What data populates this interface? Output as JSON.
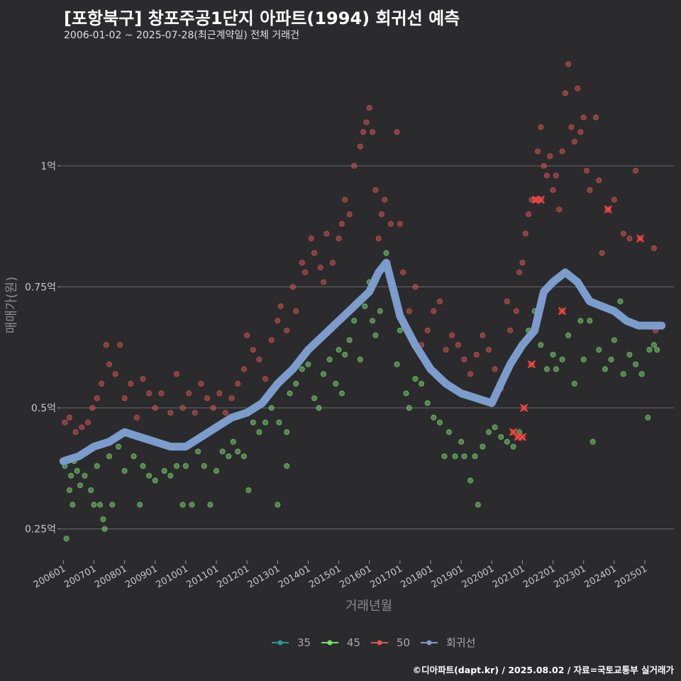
{
  "title": "[포항북구] 창포주공1단지 아파트(1994) 회귀선 예측",
  "subtitle": "2006-01-02 ~ 2025-07-28(최근계약일) 전체 거래건",
  "caption": "©디아파트(dapt.kr) / 2025.08.02 / 자료=국토교통부 실거래가",
  "chart_data": {
    "type": "scatter",
    "xlabel": "거래년월",
    "ylabel": "매매가(원)",
    "x_ticks": [
      "200601",
      "200701",
      "200801",
      "200901",
      "201001",
      "201101",
      "201201",
      "201301",
      "201401",
      "201501",
      "201601",
      "201701",
      "201801",
      "201901",
      "202001",
      "202101",
      "202201",
      "202301",
      "202401",
      "202501"
    ],
    "y_ticks": [
      {
        "value": 0.25,
        "label": "0.25억"
      },
      {
        "value": 0.5,
        "label": "0.5억"
      },
      {
        "value": 0.75,
        "label": "0.75억"
      },
      {
        "value": 1.0,
        "label": "1억"
      }
    ],
    "xlim": [
      2005.9,
      2025.95
    ],
    "ylim": [
      0.185,
      1.24
    ],
    "grid": true,
    "legend_position": "bottom",
    "series": [
      {
        "name": "35",
        "color": "#2a9d8f",
        "points": []
      },
      {
        "name": "45",
        "color": "#7ddb6f",
        "points": [
          [
            2006.05,
            0.38
          ],
          [
            2006.1,
            0.23
          ],
          [
            2006.2,
            0.33
          ],
          [
            2006.25,
            0.36
          ],
          [
            2006.3,
            0.3
          ],
          [
            2006.35,
            0.39
          ],
          [
            2006.45,
            0.37
          ],
          [
            2006.55,
            0.34
          ],
          [
            2006.7,
            0.36
          ],
          [
            2006.9,
            0.33
          ],
          [
            2007.0,
            0.3
          ],
          [
            2007.1,
            0.38
          ],
          [
            2007.2,
            0.3
          ],
          [
            2007.3,
            0.27
          ],
          [
            2007.35,
            0.25
          ],
          [
            2007.5,
            0.4
          ],
          [
            2007.6,
            0.3
          ],
          [
            2007.8,
            0.42
          ],
          [
            2008.0,
            0.37
          ],
          [
            2008.3,
            0.4
          ],
          [
            2008.5,
            0.3
          ],
          [
            2008.6,
            0.38
          ],
          [
            2008.8,
            0.36
          ],
          [
            2009.0,
            0.35
          ],
          [
            2009.3,
            0.37
          ],
          [
            2009.5,
            0.36
          ],
          [
            2009.7,
            0.38
          ],
          [
            2009.9,
            0.3
          ],
          [
            2010.0,
            0.38
          ],
          [
            2010.2,
            0.3
          ],
          [
            2010.4,
            0.41
          ],
          [
            2010.6,
            0.38
          ],
          [
            2010.8,
            0.3
          ],
          [
            2011.0,
            0.37
          ],
          [
            2011.2,
            0.41
          ],
          [
            2011.4,
            0.4
          ],
          [
            2011.55,
            0.43
          ],
          [
            2011.7,
            0.41
          ],
          [
            2011.9,
            0.4
          ],
          [
            2012.05,
            0.33
          ],
          [
            2012.2,
            0.47
          ],
          [
            2012.4,
            0.45
          ],
          [
            2012.6,
            0.47
          ],
          [
            2012.8,
            0.5
          ],
          [
            2013.0,
            0.3
          ],
          [
            2013.05,
            0.47
          ],
          [
            2013.3,
            0.38
          ],
          [
            2013.3,
            0.45
          ],
          [
            2013.4,
            0.53
          ],
          [
            2013.6,
            0.55
          ],
          [
            2013.8,
            0.58
          ],
          [
            2014.0,
            0.59
          ],
          [
            2014.2,
            0.52
          ],
          [
            2014.35,
            0.5
          ],
          [
            2014.5,
            0.57
          ],
          [
            2014.7,
            0.6
          ],
          [
            2014.9,
            0.55
          ],
          [
            2015.0,
            0.62
          ],
          [
            2015.1,
            0.53
          ],
          [
            2015.2,
            0.61
          ],
          [
            2015.35,
            0.64
          ],
          [
            2015.5,
            0.68
          ],
          [
            2015.7,
            0.6
          ],
          [
            2015.85,
            0.71
          ],
          [
            2016.0,
            0.76
          ],
          [
            2016.1,
            0.68
          ],
          [
            2016.2,
            0.65
          ],
          [
            2016.35,
            0.7
          ],
          [
            2016.55,
            0.82
          ],
          [
            2016.9,
            0.59
          ],
          [
            2017.0,
            0.66
          ],
          [
            2017.2,
            0.53
          ],
          [
            2017.3,
            0.5
          ],
          [
            2017.5,
            0.56
          ],
          [
            2017.7,
            0.55
          ],
          [
            2017.9,
            0.51
          ],
          [
            2018.1,
            0.48
          ],
          [
            2018.3,
            0.47
          ],
          [
            2018.45,
            0.4
          ],
          [
            2018.6,
            0.45
          ],
          [
            2018.8,
            0.4
          ],
          [
            2019.0,
            0.43
          ],
          [
            2019.1,
            0.4
          ],
          [
            2019.3,
            0.35
          ],
          [
            2019.45,
            0.4
          ],
          [
            2019.55,
            0.3
          ],
          [
            2019.7,
            0.42
          ],
          [
            2019.9,
            0.45
          ],
          [
            2020.1,
            0.46
          ],
          [
            2020.3,
            0.44
          ],
          [
            2020.5,
            0.43
          ],
          [
            2020.7,
            0.42
          ],
          [
            2020.9,
            0.45
          ],
          [
            2021.2,
            0.66
          ],
          [
            2021.4,
            0.7
          ],
          [
            2021.6,
            0.63
          ],
          [
            2021.8,
            0.58
          ],
          [
            2022.0,
            0.61
          ],
          [
            2022.1,
            0.58
          ],
          [
            2022.3,
            0.6
          ],
          [
            2022.5,
            0.65
          ],
          [
            2022.7,
            0.55
          ],
          [
            2022.9,
            0.68
          ],
          [
            2023.0,
            0.6
          ],
          [
            2023.2,
            0.68
          ],
          [
            2023.3,
            0.43
          ],
          [
            2023.5,
            0.62
          ],
          [
            2023.7,
            0.58
          ],
          [
            2023.9,
            0.6
          ],
          [
            2024.0,
            0.64
          ],
          [
            2024.2,
            0.72
          ],
          [
            2024.3,
            0.57
          ],
          [
            2024.5,
            0.61
          ],
          [
            2024.7,
            0.59
          ],
          [
            2024.9,
            0.57
          ],
          [
            2025.0,
            0.67
          ],
          [
            2025.1,
            0.48
          ],
          [
            2025.15,
            0.62
          ],
          [
            2025.3,
            0.63
          ],
          [
            2025.4,
            0.62
          ]
        ]
      },
      {
        "name": "50",
        "color": "#e05555",
        "points": [
          [
            2006.05,
            0.47
          ],
          [
            2006.2,
            0.48
          ],
          [
            2006.4,
            0.45
          ],
          [
            2006.6,
            0.46
          ],
          [
            2006.8,
            0.47
          ],
          [
            2006.95,
            0.5
          ],
          [
            2007.1,
            0.52
          ],
          [
            2007.25,
            0.55
          ],
          [
            2007.4,
            0.63
          ],
          [
            2007.5,
            0.59
          ],
          [
            2007.7,
            0.57
          ],
          [
            2007.85,
            0.63
          ],
          [
            2008.0,
            0.52
          ],
          [
            2008.2,
            0.55
          ],
          [
            2008.4,
            0.48
          ],
          [
            2008.6,
            0.56
          ],
          [
            2008.8,
            0.53
          ],
          [
            2009.0,
            0.5
          ],
          [
            2009.2,
            0.53
          ],
          [
            2009.5,
            0.49
          ],
          [
            2009.7,
            0.57
          ],
          [
            2009.9,
            0.5
          ],
          [
            2010.1,
            0.53
          ],
          [
            2010.3,
            0.49
          ],
          [
            2010.5,
            0.55
          ],
          [
            2010.7,
            0.52
          ],
          [
            2010.9,
            0.5
          ],
          [
            2011.1,
            0.53
          ],
          [
            2011.3,
            0.49
          ],
          [
            2011.5,
            0.52
          ],
          [
            2011.7,
            0.55
          ],
          [
            2011.9,
            0.58
          ],
          [
            2012.0,
            0.65
          ],
          [
            2012.2,
            0.62
          ],
          [
            2012.4,
            0.6
          ],
          [
            2012.6,
            0.56
          ],
          [
            2012.8,
            0.64
          ],
          [
            2013.0,
            0.68
          ],
          [
            2013.1,
            0.71
          ],
          [
            2013.3,
            0.66
          ],
          [
            2013.5,
            0.75
          ],
          [
            2013.6,
            0.7
          ],
          [
            2013.8,
            0.8
          ],
          [
            2013.9,
            0.78
          ],
          [
            2014.1,
            0.85
          ],
          [
            2014.2,
            0.82
          ],
          [
            2014.4,
            0.79
          ],
          [
            2014.5,
            0.76
          ],
          [
            2014.6,
            0.86
          ],
          [
            2014.8,
            0.8
          ],
          [
            2015.0,
            0.85
          ],
          [
            2015.1,
            0.88
          ],
          [
            2015.2,
            0.93
          ],
          [
            2015.35,
            0.9
          ],
          [
            2015.5,
            1.0
          ],
          [
            2015.7,
            1.04
          ],
          [
            2015.8,
            1.07
          ],
          [
            2015.9,
            1.09
          ],
          [
            2016.0,
            1.12
          ],
          [
            2016.1,
            1.07
          ],
          [
            2016.2,
            0.95
          ],
          [
            2016.3,
            0.85
          ],
          [
            2016.4,
            0.9
          ],
          [
            2016.5,
            0.93
          ],
          [
            2016.6,
            0.8
          ],
          [
            2016.7,
            0.88
          ],
          [
            2016.9,
            1.07
          ],
          [
            2017.0,
            0.88
          ],
          [
            2017.1,
            0.78
          ],
          [
            2017.3,
            0.7
          ],
          [
            2017.5,
            0.75
          ],
          [
            2017.7,
            0.63
          ],
          [
            2017.9,
            0.66
          ],
          [
            2018.1,
            0.7
          ],
          [
            2018.3,
            0.72
          ],
          [
            2018.5,
            0.62
          ],
          [
            2018.7,
            0.65
          ],
          [
            2018.9,
            0.63
          ],
          [
            2019.1,
            0.6
          ],
          [
            2019.3,
            0.57
          ],
          [
            2019.5,
            0.61
          ],
          [
            2019.7,
            0.65
          ],
          [
            2019.9,
            0.62
          ],
          [
            2020.1,
            0.58
          ],
          [
            2020.3,
            0.54
          ],
          [
            2020.5,
            0.72
          ],
          [
            2020.6,
            0.66
          ],
          [
            2020.8,
            0.7
          ],
          [
            2020.9,
            0.78
          ],
          [
            2021.0,
            0.8
          ],
          [
            2021.1,
            0.86
          ],
          [
            2021.2,
            0.9
          ],
          [
            2021.3,
            0.93
          ],
          [
            2021.4,
            0.93
          ],
          [
            2021.5,
            1.03
          ],
          [
            2021.6,
            1.08
          ],
          [
            2021.7,
            1.0
          ],
          [
            2021.8,
            0.98
          ],
          [
            2021.9,
            1.02
          ],
          [
            2022.0,
            0.95
          ],
          [
            2022.1,
            0.98
          ],
          [
            2022.2,
            0.91
          ],
          [
            2022.3,
            1.03
          ],
          [
            2022.4,
            1.15
          ],
          [
            2022.5,
            1.21
          ],
          [
            2022.6,
            1.08
          ],
          [
            2022.7,
            1.05
          ],
          [
            2022.8,
            1.16
          ],
          [
            2022.9,
            1.07
          ],
          [
            2023.0,
            1.1
          ],
          [
            2023.1,
            0.99
          ],
          [
            2023.2,
            0.95
          ],
          [
            2023.4,
            1.1
          ],
          [
            2023.5,
            0.97
          ],
          [
            2023.6,
            0.82
          ],
          [
            2023.8,
            0.91
          ],
          [
            2024.0,
            0.93
          ],
          [
            2024.3,
            0.86
          ],
          [
            2024.5,
            0.85
          ],
          [
            2024.7,
            0.99
          ],
          [
            2025.3,
            0.83
          ],
          [
            2025.35,
            0.66
          ]
        ]
      },
      {
        "name": "회귀선",
        "color": "#7b9ccc",
        "points": [
          [
            2006.0,
            0.39
          ],
          [
            2006.5,
            0.4
          ],
          [
            2007.0,
            0.42
          ],
          [
            2007.5,
            0.43
          ],
          [
            2008.0,
            0.45
          ],
          [
            2008.5,
            0.44
          ],
          [
            2009.0,
            0.43
          ],
          [
            2009.5,
            0.42
          ],
          [
            2010.0,
            0.42
          ],
          [
            2010.5,
            0.44
          ],
          [
            2011.0,
            0.46
          ],
          [
            2011.5,
            0.48
          ],
          [
            2012.0,
            0.49
          ],
          [
            2012.5,
            0.51
          ],
          [
            2013.0,
            0.55
          ],
          [
            2013.5,
            0.58
          ],
          [
            2014.0,
            0.62
          ],
          [
            2014.5,
            0.65
          ],
          [
            2015.0,
            0.68
          ],
          [
            2015.5,
            0.71
          ],
          [
            2016.0,
            0.74
          ],
          [
            2016.3,
            0.78
          ],
          [
            2016.55,
            0.8
          ],
          [
            2016.8,
            0.74
          ],
          [
            2017.0,
            0.69
          ],
          [
            2017.5,
            0.63
          ],
          [
            2018.0,
            0.58
          ],
          [
            2018.5,
            0.55
          ],
          [
            2019.0,
            0.53
          ],
          [
            2019.5,
            0.52
          ],
          [
            2020.0,
            0.51
          ],
          [
            2020.3,
            0.55
          ],
          [
            2020.6,
            0.59
          ],
          [
            2021.0,
            0.63
          ],
          [
            2021.4,
            0.66
          ],
          [
            2021.7,
            0.74
          ],
          [
            2022.0,
            0.76
          ],
          [
            2022.4,
            0.78
          ],
          [
            2022.8,
            0.76
          ],
          [
            2023.2,
            0.72
          ],
          [
            2023.6,
            0.71
          ],
          [
            2024.0,
            0.7
          ],
          [
            2024.4,
            0.68
          ],
          [
            2024.8,
            0.67
          ],
          [
            2025.2,
            0.67
          ],
          [
            2025.55,
            0.67
          ]
        ]
      }
    ],
    "highlighted_points": [
      [
        2020.7,
        0.45
      ],
      [
        2020.85,
        0.44
      ],
      [
        2021.0,
        0.44
      ],
      [
        2021.05,
        0.5
      ],
      [
        2021.3,
        0.59
      ],
      [
        2021.45,
        0.93
      ],
      [
        2021.6,
        0.93
      ],
      [
        2022.3,
        0.7
      ],
      [
        2023.8,
        0.91
      ],
      [
        2024.85,
        0.85
      ]
    ]
  }
}
